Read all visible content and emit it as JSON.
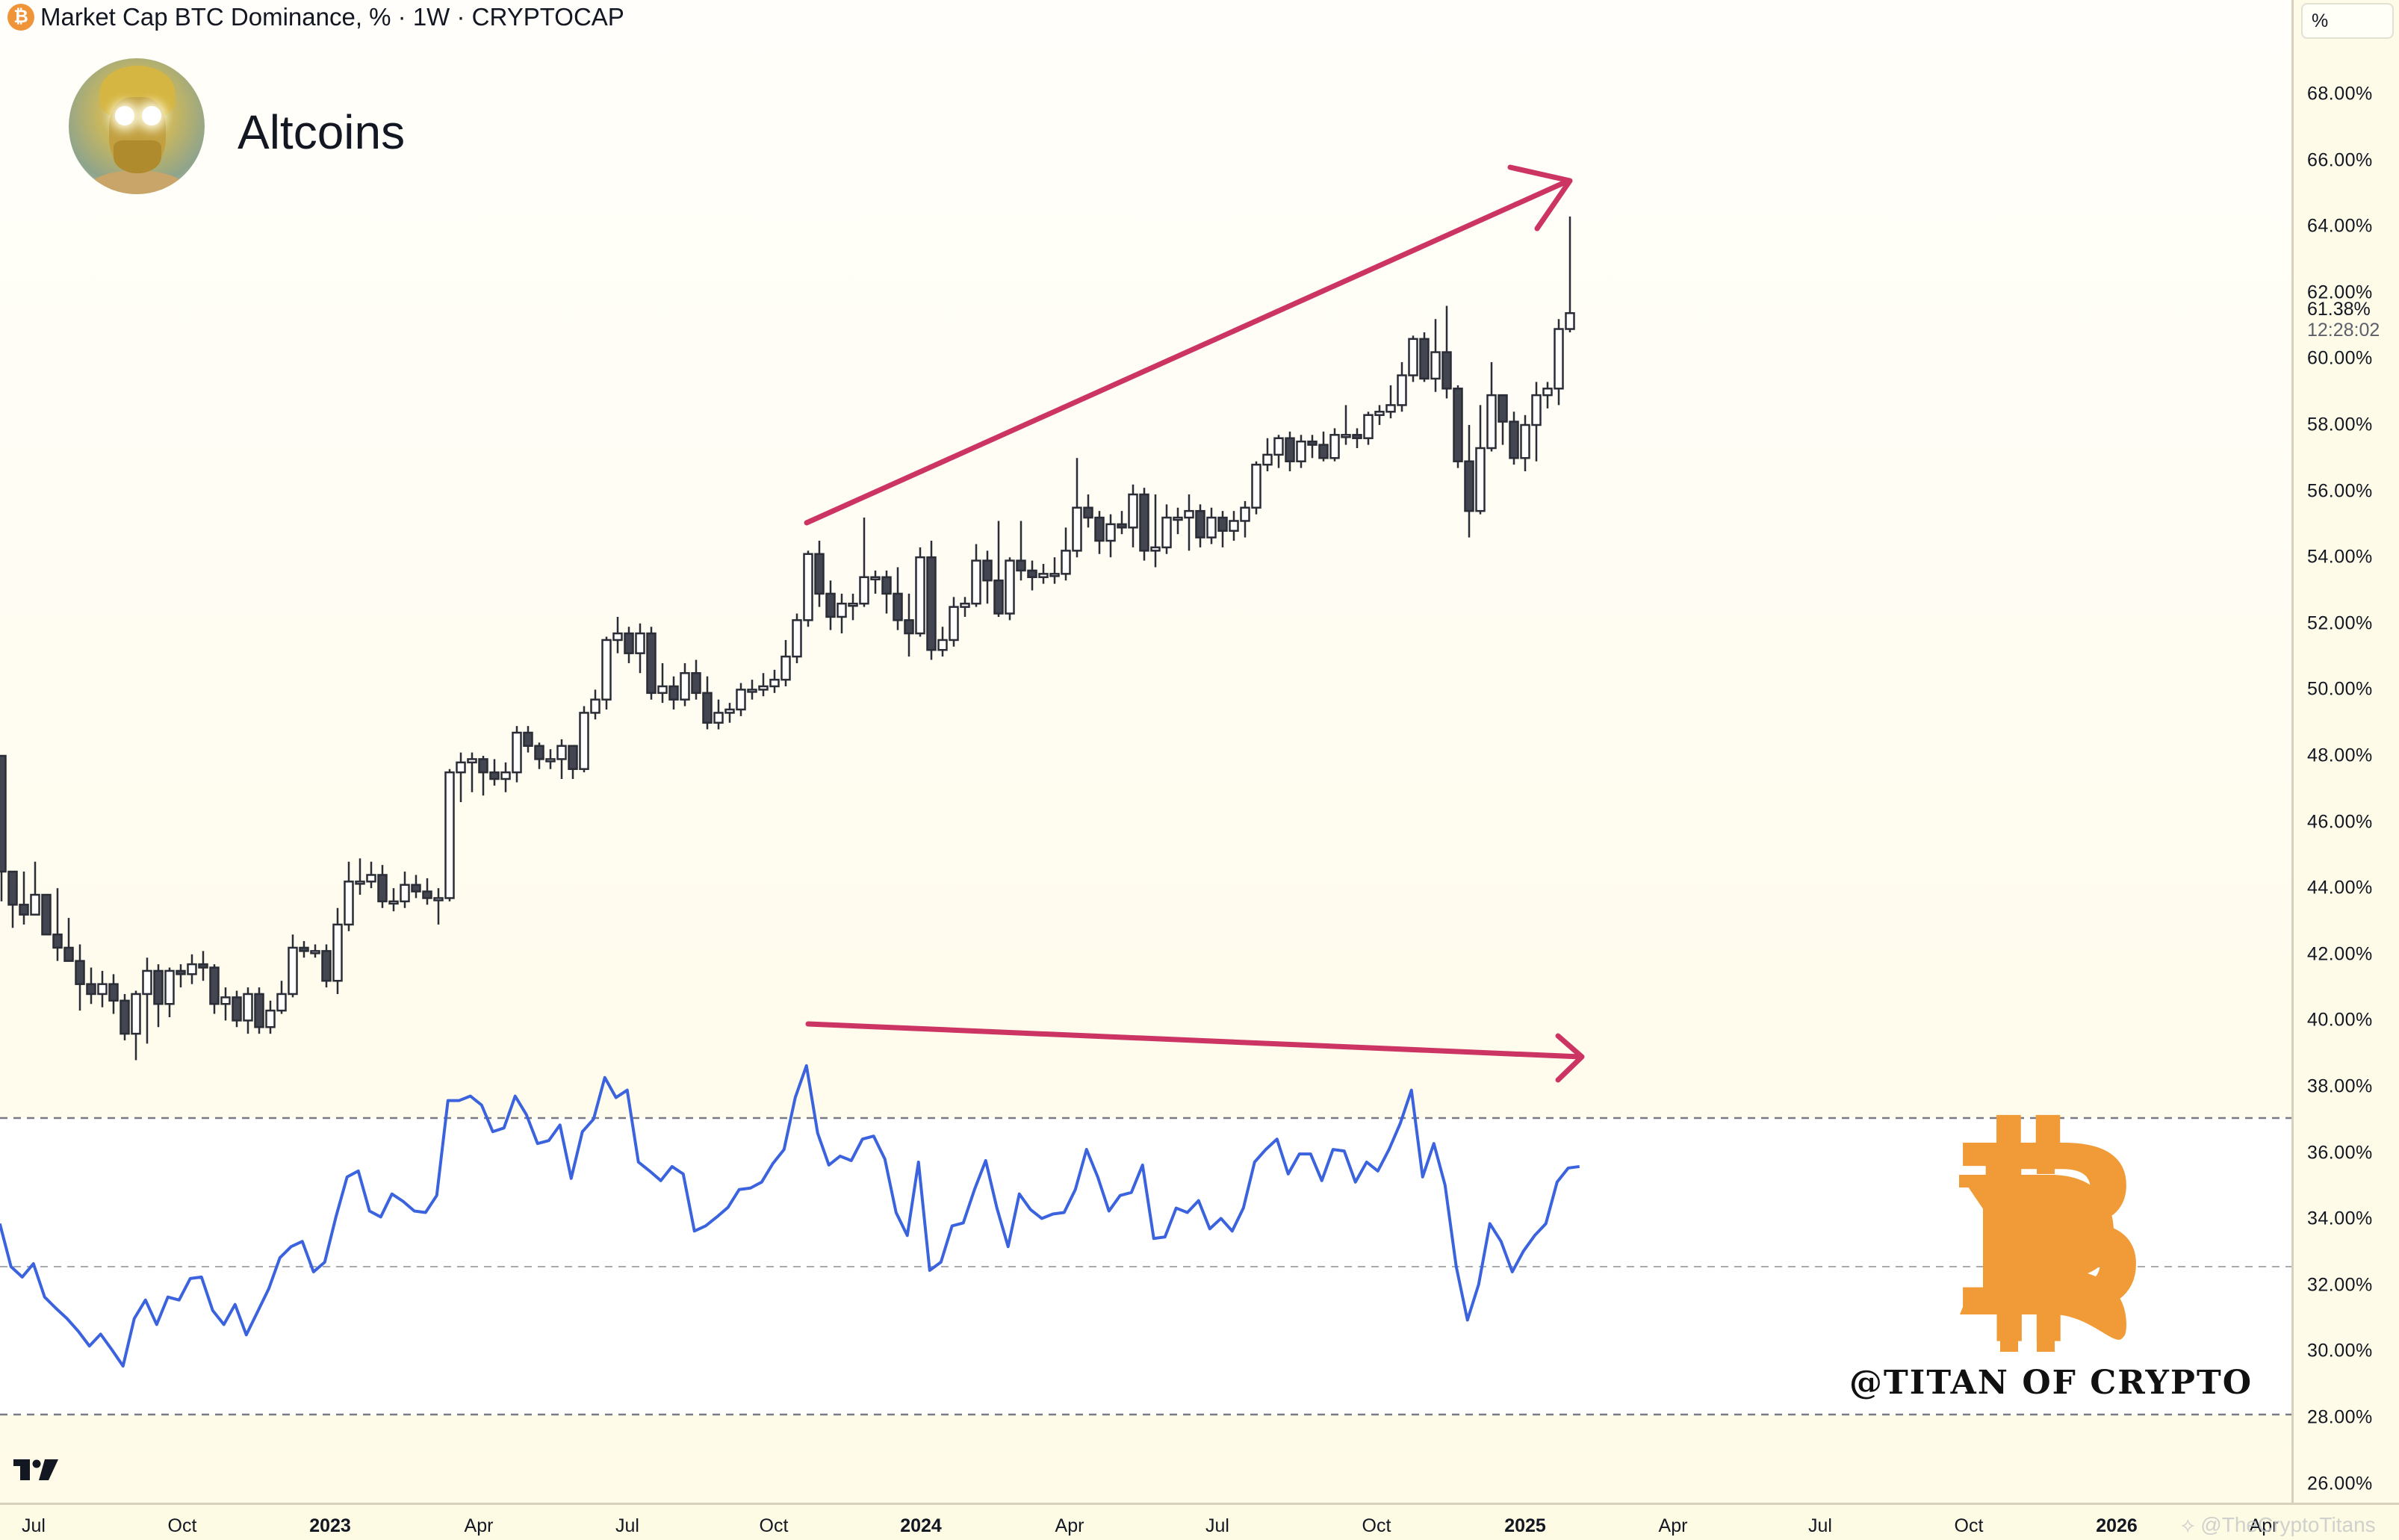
{
  "header": {
    "symbol_icon": "bitcoin-icon",
    "title": "Market Cap BTC Dominance, % · 1W · CRYPTOCAP"
  },
  "overlay": {
    "avatar": "anime-avatar-glowing-eyes",
    "brand_title": "Altcoins",
    "bitcoin_logo_color": "#F09B38",
    "signature": "@TITAN OF CRYPTO",
    "watermark": "⟡ @TheCryptoTitans"
  },
  "price_axis": {
    "unit_button": "%",
    "last_price": "61.38%",
    "countdown": "12:28:02",
    "labels": [
      "68.00%",
      "66.00%",
      "64.00%",
      "62.00%",
      "60.00%",
      "58.00%",
      "56.00%",
      "54.00%",
      "52.00%",
      "50.00%",
      "48.00%",
      "46.00%",
      "44.00%",
      "42.00%",
      "40.00%",
      "38.00%",
      "36.00%",
      "34.00%",
      "32.00%",
      "30.00%",
      "28.00%",
      "26.00%"
    ]
  },
  "time_axis": {
    "labels": [
      {
        "text": "Jul",
        "x": 45,
        "year": false
      },
      {
        "text": "Oct",
        "x": 244,
        "year": false
      },
      {
        "text": "2023",
        "x": 442,
        "year": true
      },
      {
        "text": "Apr",
        "x": 641,
        "year": false
      },
      {
        "text": "Jul",
        "x": 840,
        "year": false
      },
      {
        "text": "Oct",
        "x": 1036,
        "year": false
      },
      {
        "text": "2024",
        "x": 1233,
        "year": true
      },
      {
        "text": "Apr",
        "x": 1432,
        "year": false
      },
      {
        "text": "Jul",
        "x": 1630,
        "year": false
      },
      {
        "text": "Oct",
        "x": 1843,
        "year": false
      },
      {
        "text": "2025",
        "x": 2042,
        "year": true
      },
      {
        "text": "Apr",
        "x": 2240,
        "year": false
      },
      {
        "text": "Jul",
        "x": 2437,
        "year": false
      },
      {
        "text": "Oct",
        "x": 2636,
        "year": false
      },
      {
        "text": "2026",
        "x": 2834,
        "year": true
      },
      {
        "text": "Apr",
        "x": 3031,
        "year": false
      }
    ]
  },
  "colors": {
    "candle_up_fill": "#ffffff",
    "candle_down_fill": "#434651",
    "candle_border": "#2a2d36",
    "rsi_line": "#3c63de",
    "annotation_arrow": "#cc3563",
    "rsi_band_dash": "#787b86"
  },
  "chart_data": {
    "type": "candlestick",
    "title": "Market Cap BTC Dominance, % · 1W · CRYPTOCAP",
    "xlabel": "",
    "ylabel": "%",
    "ylim": [
      25,
      69
    ],
    "x_ticks": [
      "Jul",
      "Oct",
      "2023",
      "Apr",
      "Jul",
      "Oct",
      "2024",
      "Apr",
      "Jul",
      "Oct",
      "2025",
      "Apr",
      "Jul",
      "Oct",
      "2026",
      "Apr"
    ],
    "grid": false,
    "last_value": 61.38,
    "ohlc_columns": [
      "open",
      "high",
      "low",
      "close"
    ],
    "candles": [
      [
        48.0,
        48.0,
        43.6,
        44.5
      ],
      [
        44.5,
        44.5,
        42.8,
        43.5
      ],
      [
        43.5,
        44.5,
        42.9,
        43.2
      ],
      [
        43.2,
        44.8,
        43.2,
        43.8
      ],
      [
        43.8,
        43.8,
        42.6,
        42.6
      ],
      [
        42.6,
        44.0,
        41.8,
        42.2
      ],
      [
        42.2,
        43.1,
        41.8,
        41.8
      ],
      [
        41.8,
        42.3,
        40.3,
        41.1
      ],
      [
        41.1,
        41.6,
        40.5,
        40.8
      ],
      [
        40.8,
        41.5,
        40.4,
        41.1
      ],
      [
        41.1,
        41.4,
        40.2,
        40.6
      ],
      [
        40.6,
        40.8,
        39.4,
        39.6
      ],
      [
        39.6,
        40.9,
        38.8,
        40.8
      ],
      [
        40.8,
        41.9,
        39.3,
        41.5
      ],
      [
        41.5,
        41.7,
        39.8,
        40.5
      ],
      [
        40.5,
        41.6,
        40.1,
        41.5
      ],
      [
        41.5,
        41.7,
        41.0,
        41.4
      ],
      [
        41.4,
        42.0,
        41.1,
        41.7
      ],
      [
        41.7,
        42.1,
        41.2,
        41.6
      ],
      [
        41.6,
        41.7,
        40.2,
        40.5
      ],
      [
        40.5,
        41.0,
        40.0,
        40.7
      ],
      [
        40.7,
        40.9,
        39.8,
        40.0
      ],
      [
        40.0,
        41.0,
        39.6,
        40.8
      ],
      [
        40.8,
        41.0,
        39.6,
        39.8
      ],
      [
        39.8,
        40.6,
        39.6,
        40.3
      ],
      [
        40.3,
        41.2,
        40.2,
        40.8
      ],
      [
        40.8,
        42.6,
        40.7,
        42.2
      ],
      [
        42.2,
        42.4,
        41.9,
        42.1
      ],
      [
        42.1,
        42.3,
        41.9,
        42.1
      ],
      [
        42.1,
        42.3,
        41.0,
        41.2
      ],
      [
        41.2,
        43.4,
        40.8,
        42.9
      ],
      [
        42.9,
        44.8,
        42.7,
        44.2
      ],
      [
        44.2,
        44.9,
        43.8,
        44.2
      ],
      [
        44.2,
        44.8,
        44.0,
        44.4
      ],
      [
        44.4,
        44.7,
        43.4,
        43.6
      ],
      [
        43.6,
        44.0,
        43.3,
        43.6
      ],
      [
        43.6,
        44.5,
        43.4,
        44.1
      ],
      [
        44.1,
        44.4,
        43.7,
        43.9
      ],
      [
        43.9,
        44.3,
        43.5,
        43.7
      ],
      [
        43.7,
        44.0,
        42.9,
        43.7
      ],
      [
        43.7,
        47.6,
        43.6,
        47.5
      ],
      [
        47.5,
        48.1,
        46.6,
        47.8
      ],
      [
        47.8,
        48.1,
        46.9,
        47.9
      ],
      [
        47.9,
        48.0,
        46.8,
        47.5
      ],
      [
        47.5,
        47.9,
        47.1,
        47.3
      ],
      [
        47.3,
        47.8,
        46.9,
        47.5
      ],
      [
        47.5,
        48.9,
        47.2,
        48.7
      ],
      [
        48.7,
        48.9,
        48.1,
        48.3
      ],
      [
        48.3,
        48.4,
        47.6,
        47.9
      ],
      [
        47.9,
        48.2,
        47.6,
        47.9
      ],
      [
        47.9,
        48.5,
        47.3,
        48.3
      ],
      [
        48.3,
        48.3,
        47.3,
        47.6
      ],
      [
        47.6,
        49.5,
        47.5,
        49.3
      ],
      [
        49.3,
        50.0,
        49.1,
        49.7
      ],
      [
        49.7,
        51.6,
        49.4,
        51.5
      ],
      [
        51.5,
        52.2,
        51.1,
        51.7
      ],
      [
        51.7,
        51.9,
        50.8,
        51.1
      ],
      [
        51.1,
        52.0,
        50.5,
        51.7
      ],
      [
        51.7,
        51.9,
        49.7,
        49.9
      ],
      [
        49.9,
        50.8,
        49.6,
        50.1
      ],
      [
        50.1,
        50.4,
        49.4,
        49.7
      ],
      [
        49.7,
        50.8,
        49.5,
        50.5
      ],
      [
        50.5,
        50.9,
        49.7,
        49.9
      ],
      [
        49.9,
        50.4,
        48.8,
        49.0
      ],
      [
        49.0,
        49.7,
        48.8,
        49.3
      ],
      [
        49.3,
        49.6,
        49.0,
        49.4
      ],
      [
        49.4,
        50.2,
        49.2,
        50.0
      ],
      [
        50.0,
        50.3,
        49.7,
        50.0
      ],
      [
        50.0,
        50.5,
        49.8,
        50.1
      ],
      [
        50.1,
        50.6,
        49.9,
        50.3
      ],
      [
        50.3,
        51.5,
        50.1,
        51.0
      ],
      [
        51.0,
        52.3,
        50.8,
        52.1
      ],
      [
        52.1,
        54.2,
        51.9,
        54.1
      ],
      [
        54.1,
        54.5,
        52.5,
        52.9
      ],
      [
        52.9,
        53.3,
        51.8,
        52.2
      ],
      [
        52.2,
        52.9,
        51.7,
        52.6
      ],
      [
        52.6,
        52.9,
        52.1,
        52.6
      ],
      [
        52.6,
        55.2,
        52.5,
        53.4
      ],
      [
        53.4,
        53.6,
        52.9,
        53.4
      ],
      [
        53.4,
        53.6,
        52.3,
        52.9
      ],
      [
        52.9,
        53.7,
        51.8,
        52.1
      ],
      [
        52.1,
        52.9,
        51.0,
        51.7
      ],
      [
        51.7,
        54.3,
        51.6,
        54.0
      ],
      [
        54.0,
        54.5,
        50.9,
        51.2
      ],
      [
        51.2,
        51.9,
        51.0,
        51.5
      ],
      [
        51.5,
        52.8,
        51.3,
        52.5
      ],
      [
        52.5,
        52.8,
        52.2,
        52.6
      ],
      [
        52.6,
        54.4,
        52.5,
        53.9
      ],
      [
        53.9,
        54.2,
        52.6,
        53.3
      ],
      [
        53.3,
        55.1,
        52.2,
        52.3
      ],
      [
        52.3,
        54.0,
        52.1,
        53.9
      ],
      [
        53.9,
        55.1,
        53.3,
        53.6
      ],
      [
        53.6,
        53.9,
        53.0,
        53.4
      ],
      [
        53.4,
        53.8,
        53.2,
        53.5
      ],
      [
        53.5,
        54.0,
        53.2,
        53.5
      ],
      [
        53.5,
        54.9,
        53.3,
        54.2
      ],
      [
        54.2,
        57.0,
        54.0,
        55.5
      ],
      [
        55.5,
        55.9,
        54.9,
        55.2
      ],
      [
        55.2,
        55.4,
        54.1,
        54.5
      ],
      [
        54.5,
        55.3,
        54.0,
        55.0
      ],
      [
        55.0,
        55.4,
        54.7,
        54.9
      ],
      [
        54.9,
        56.2,
        54.3,
        55.9
      ],
      [
        55.9,
        56.1,
        53.9,
        54.2
      ],
      [
        54.2,
        55.9,
        53.7,
        54.3
      ],
      [
        54.3,
        55.6,
        54.1,
        55.2
      ],
      [
        55.2,
        55.5,
        54.7,
        55.2
      ],
      [
        55.2,
        55.9,
        54.2,
        55.4
      ],
      [
        55.4,
        55.6,
        54.3,
        54.6
      ],
      [
        54.6,
        55.5,
        54.4,
        55.2
      ],
      [
        55.2,
        55.4,
        54.3,
        54.8
      ],
      [
        54.8,
        55.4,
        54.5,
        55.1
      ],
      [
        55.1,
        55.7,
        54.6,
        55.5
      ],
      [
        55.5,
        56.9,
        55.3,
        56.8
      ],
      [
        56.8,
        57.6,
        56.6,
        57.1
      ],
      [
        57.1,
        57.7,
        56.7,
        57.6
      ],
      [
        57.6,
        57.8,
        56.6,
        56.9
      ],
      [
        56.9,
        57.7,
        56.7,
        57.5
      ],
      [
        57.5,
        57.7,
        57.0,
        57.4
      ],
      [
        57.4,
        57.8,
        56.9,
        57.0
      ],
      [
        57.0,
        57.9,
        56.9,
        57.7
      ],
      [
        57.7,
        58.6,
        57.4,
        57.7
      ],
      [
        57.7,
        57.9,
        57.3,
        57.6
      ],
      [
        57.6,
        58.4,
        57.4,
        58.3
      ],
      [
        58.3,
        58.6,
        58.0,
        58.4
      ],
      [
        58.4,
        59.2,
        58.2,
        58.6
      ],
      [
        58.6,
        59.9,
        58.4,
        59.5
      ],
      [
        59.5,
        60.7,
        59.3,
        60.6
      ],
      [
        60.6,
        60.8,
        59.3,
        59.4
      ],
      [
        59.4,
        61.2,
        59.0,
        60.2
      ],
      [
        60.2,
        61.6,
        58.8,
        59.1
      ],
      [
        59.1,
        59.2,
        56.7,
        56.9
      ],
      [
        56.9,
        58.0,
        54.6,
        55.4
      ],
      [
        55.4,
        58.6,
        55.3,
        57.3
      ],
      [
        57.3,
        59.9,
        57.2,
        58.9
      ],
      [
        58.9,
        58.9,
        57.4,
        58.1
      ],
      [
        58.1,
        58.4,
        56.8,
        57.0
      ],
      [
        57.0,
        58.3,
        56.6,
        58.0
      ],
      [
        58.0,
        59.3,
        56.9,
        58.9
      ],
      [
        58.9,
        59.3,
        58.5,
        59.1
      ],
      [
        59.1,
        61.2,
        58.6,
        60.9
      ],
      [
        60.9,
        64.3,
        60.8,
        61.38
      ]
    ],
    "rsi": {
      "name": "RSI",
      "levels": [
        70,
        50,
        30
      ],
      "values": [
        55.8,
        50.0,
        48.6,
        50.4,
        45.9,
        44.4,
        43.0,
        41.3,
        39.3,
        40.9,
        38.8,
        36.6,
        43.0,
        45.5,
        42.2,
        45.9,
        45.5,
        48.4,
        48.6,
        44.1,
        42.2,
        44.9,
        40.8,
        43.9,
        47.0,
        51.2,
        52.7,
        53.4,
        49.3,
        50.6,
        56.7,
        62.1,
        62.9,
        57.5,
        56.7,
        59.8,
        58.8,
        57.5,
        57.3,
        59.6,
        72.4,
        72.4,
        73.0,
        71.8,
        68.2,
        68.7,
        73.0,
        70.5,
        66.6,
        67.0,
        69.1,
        61.9,
        68.2,
        69.9,
        75.5,
        72.8,
        73.8,
        64.1,
        62.9,
        61.6,
        63.5,
        62.5,
        54.8,
        55.5,
        56.7,
        58.0,
        60.4,
        60.6,
        61.4,
        63.9,
        65.8,
        72.8,
        77.1,
        68.0,
        63.7,
        64.9,
        64.3,
        67.2,
        67.6,
        64.5,
        57.3,
        54.2,
        64.1,
        49.5,
        50.6,
        55.5,
        55.9,
        60.4,
        64.3,
        57.9,
        52.7,
        59.8,
        57.7,
        56.5,
        57.1,
        57.3,
        60.4,
        65.8,
        62.1,
        57.5,
        59.6,
        60.0,
        63.7,
        53.8,
        54.0,
        57.9,
        57.3,
        58.9,
        55.1,
        56.5,
        54.8,
        57.9,
        64.1,
        65.8,
        67.2,
        62.5,
        65.2,
        65.2,
        61.6,
        65.8,
        65.6,
        61.4,
        64.1,
        62.9,
        65.8,
        69.3,
        73.8,
        62.1,
        66.6,
        61.0,
        50.0,
        42.8,
        47.6,
        55.8,
        53.4,
        49.3,
        52.1,
        54.2,
        55.8,
        61.4,
        63.3,
        63.5
      ]
    },
    "annotations": [
      {
        "type": "arrow",
        "name": "price-higher-highs",
        "from": [
          72,
          55.5
        ],
        "to": [
          140,
          65.4
        ]
      },
      {
        "type": "arrow",
        "name": "rsi-lower-highs",
        "from": [
          72,
          "rsi"
        ],
        "to": [
          141,
          "rsi"
        ]
      }
    ]
  }
}
